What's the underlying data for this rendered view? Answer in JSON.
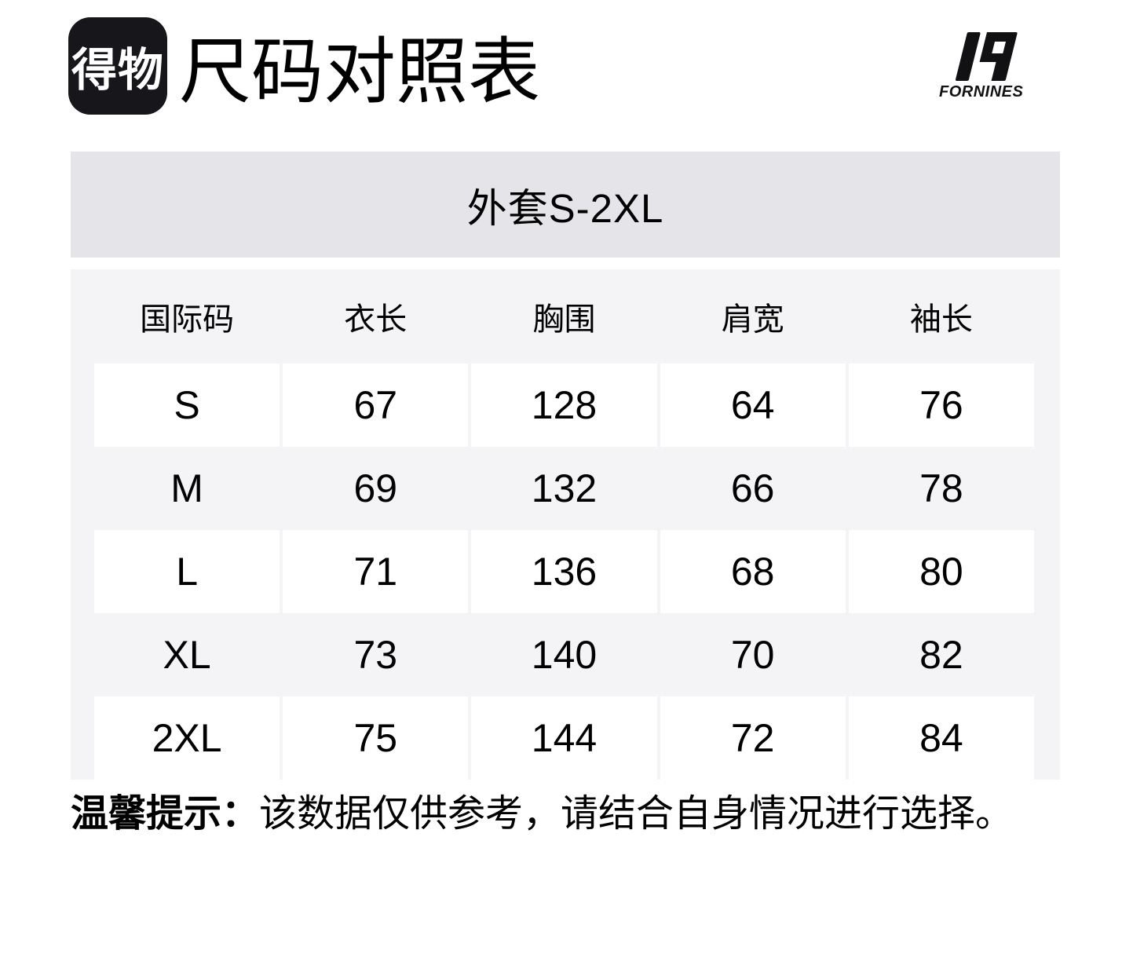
{
  "header": {
    "logo_text": "得物",
    "title": "尺码对照表",
    "brand_name": "FORNINES"
  },
  "banner": {
    "label": "外套S-2XL"
  },
  "size_table": {
    "columns": [
      "国际码",
      "衣长",
      "胸围",
      "肩宽",
      "袖长"
    ],
    "rows": [
      {
        "size": "S",
        "values": [
          67,
          128,
          64,
          76
        ]
      },
      {
        "size": "M",
        "values": [
          69,
          132,
          66,
          78
        ]
      },
      {
        "size": "L",
        "values": [
          71,
          136,
          68,
          80
        ]
      },
      {
        "size": "XL",
        "values": [
          73,
          140,
          70,
          82
        ]
      },
      {
        "size": "2XL",
        "values": [
          75,
          144,
          72,
          84
        ]
      }
    ]
  },
  "note": {
    "label": "温馨提示：",
    "text": "该数据仅供参考，请结合自身情况进行选择。"
  },
  "colors": {
    "logo_bg": "#16161b",
    "banner_bg": "#e5e4e8",
    "table_bg": "#f4f4f6",
    "cell_bg": "#ffffff",
    "text": "#000000"
  }
}
